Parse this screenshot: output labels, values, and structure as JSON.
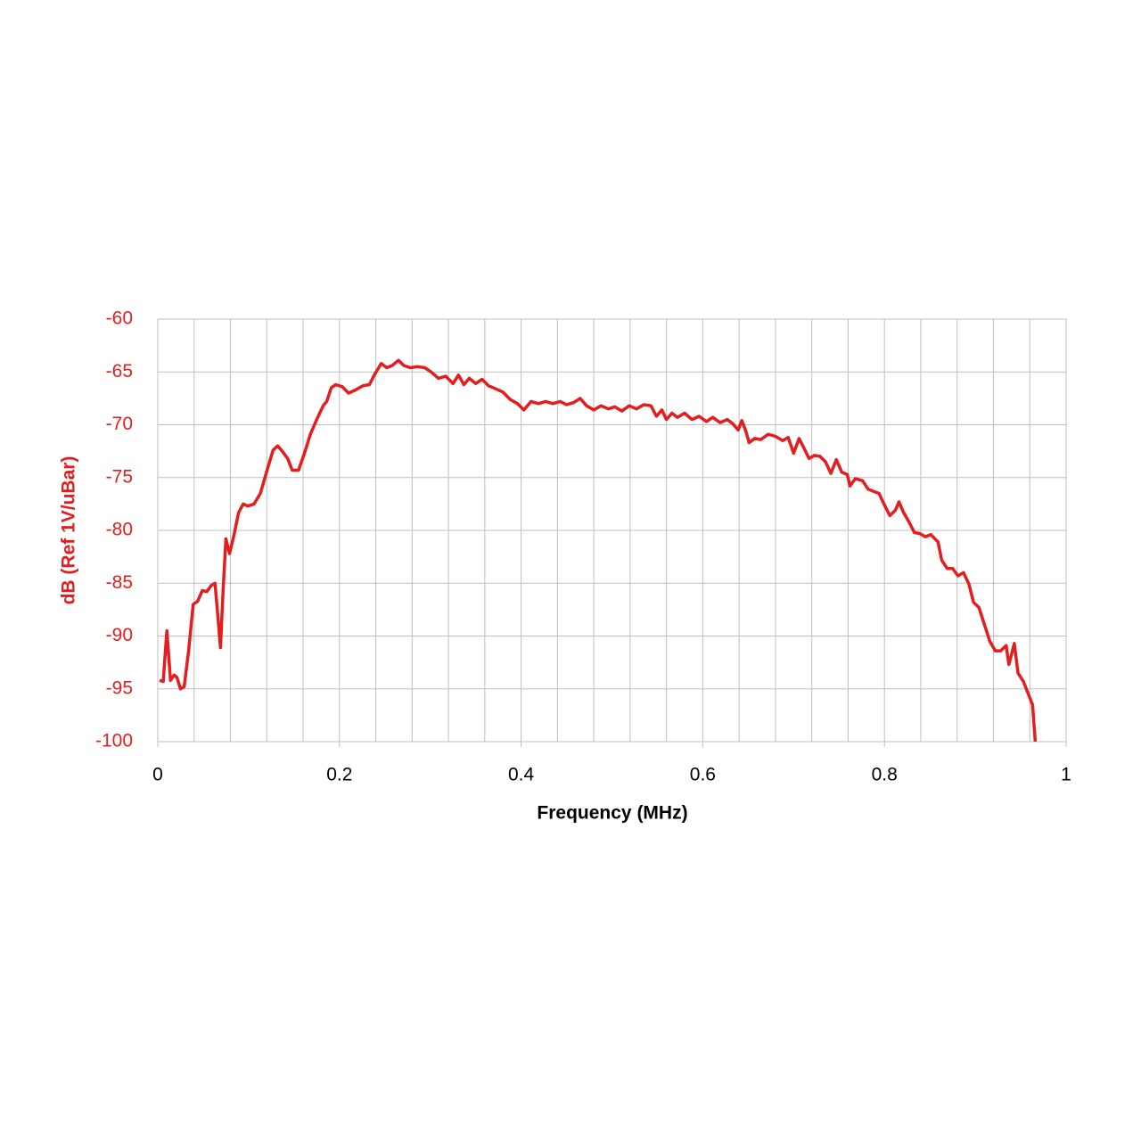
{
  "chart_data": {
    "type": "line",
    "xlabel": "Frequency (MHz)",
    "ylabel": "dB (Ref 1V/uBar)",
    "xlim": [
      0,
      1
    ],
    "ylim": [
      -100,
      -60
    ],
    "xticks": [
      0,
      0.2,
      0.4,
      0.6,
      0.8,
      1
    ],
    "yticks": [
      -100,
      -95,
      -90,
      -85,
      -80,
      -75,
      -70,
      -65,
      -60
    ],
    "xgrid": [
      0,
      0.04,
      0.08,
      0.12,
      0.16,
      0.2,
      0.24,
      0.28,
      0.32,
      0.36,
      0.4,
      0.44,
      0.48,
      0.52,
      0.56,
      0.6,
      0.64,
      0.68,
      0.72,
      0.76,
      0.8,
      0.84,
      0.88,
      0.92,
      0.96,
      1
    ],
    "grid": true,
    "series": [
      {
        "color": "#e41e1e",
        "x": [
          0.002,
          0.006,
          0.01,
          0.014,
          0.018,
          0.021,
          0.025,
          0.029,
          0.034,
          0.039,
          0.044,
          0.049,
          0.054,
          0.059,
          0.063,
          0.066,
          0.069,
          0.072,
          0.075,
          0.079,
          0.084,
          0.089,
          0.094,
          0.099,
          0.106,
          0.113,
          0.121,
          0.127,
          0.132,
          0.137,
          0.143,
          0.148,
          0.155,
          0.161,
          0.168,
          0.175,
          0.182,
          0.186,
          0.191,
          0.196,
          0.203,
          0.21,
          0.218,
          0.226,
          0.233,
          0.239,
          0.246,
          0.252,
          0.258,
          0.265,
          0.271,
          0.278,
          0.286,
          0.294,
          0.301,
          0.309,
          0.317,
          0.325,
          0.331,
          0.337,
          0.343,
          0.35,
          0.357,
          0.364,
          0.372,
          0.38,
          0.388,
          0.396,
          0.403,
          0.411,
          0.419,
          0.427,
          0.435,
          0.443,
          0.45,
          0.458,
          0.465,
          0.472,
          0.48,
          0.488,
          0.496,
          0.503,
          0.511,
          0.519,
          0.527,
          0.535,
          0.543,
          0.549,
          0.555,
          0.56,
          0.566,
          0.572,
          0.58,
          0.588,
          0.596,
          0.604,
          0.611,
          0.619,
          0.627,
          0.633,
          0.639,
          0.643,
          0.647,
          0.651,
          0.657,
          0.664,
          0.672,
          0.68,
          0.688,
          0.694,
          0.7,
          0.706,
          0.712,
          0.717,
          0.723,
          0.729,
          0.735,
          0.741,
          0.747,
          0.753,
          0.759,
          0.762,
          0.768,
          0.776,
          0.782,
          0.788,
          0.794,
          0.8,
          0.806,
          0.812,
          0.816,
          0.821,
          0.827,
          0.833,
          0.839,
          0.845,
          0.851,
          0.859,
          0.863,
          0.869,
          0.875,
          0.881,
          0.887,
          0.893,
          0.898,
          0.904,
          0.91,
          0.916,
          0.922,
          0.928,
          0.934,
          0.937,
          0.943,
          0.947,
          0.953,
          0.958,
          0.963,
          0.966
        ],
        "values": [
          -94.2,
          -94.3,
          -89.5,
          -94.2,
          -93.7,
          -93.9,
          -95.0,
          -94.8,
          -91.4,
          -87.0,
          -86.7,
          -85.7,
          -85.8,
          -85.2,
          -85.0,
          -88.0,
          -91.1,
          -85.5,
          -80.8,
          -82.2,
          -80.4,
          -78.3,
          -77.5,
          -77.7,
          -77.5,
          -76.5,
          -74.1,
          -72.4,
          -72.0,
          -72.5,
          -73.2,
          -74.3,
          -74.3,
          -72.8,
          -70.9,
          -69.5,
          -68.2,
          -67.8,
          -66.5,
          -66.2,
          -66.4,
          -67.0,
          -66.7,
          -66.3,
          -66.2,
          -65.2,
          -64.2,
          -64.6,
          -64.4,
          -63.9,
          -64.4,
          -64.6,
          -64.5,
          -64.6,
          -65.0,
          -65.6,
          -65.4,
          -66.1,
          -65.3,
          -66.2,
          -65.6,
          -66.1,
          -65.7,
          -66.3,
          -66.6,
          -66.9,
          -67.6,
          -68.0,
          -68.6,
          -67.8,
          -68.0,
          -67.8,
          -68.0,
          -67.8,
          -68.1,
          -67.9,
          -67.5,
          -68.2,
          -68.6,
          -68.2,
          -68.5,
          -68.3,
          -68.7,
          -68.2,
          -68.5,
          -68.1,
          -68.2,
          -69.2,
          -68.6,
          -69.5,
          -68.9,
          -69.3,
          -68.9,
          -69.5,
          -69.2,
          -69.7,
          -69.3,
          -69.8,
          -69.5,
          -69.9,
          -70.5,
          -69.6,
          -70.5,
          -71.7,
          -71.3,
          -71.4,
          -70.9,
          -71.1,
          -71.5,
          -71.2,
          -72.7,
          -71.3,
          -72.3,
          -73.2,
          -72.9,
          -73.0,
          -73.5,
          -74.6,
          -73.3,
          -74.5,
          -74.7,
          -75.8,
          -75.1,
          -75.3,
          -76.1,
          -76.3,
          -76.5,
          -77.6,
          -78.6,
          -78.1,
          -77.3,
          -78.3,
          -79.2,
          -80.2,
          -80.3,
          -80.6,
          -80.4,
          -81.1,
          -82.8,
          -83.6,
          -83.6,
          -84.3,
          -84.0,
          -85.1,
          -86.8,
          -87.3,
          -88.9,
          -90.5,
          -91.4,
          -91.4,
          -90.9,
          -92.7,
          -90.7,
          -93.5,
          -94.3,
          -95.4,
          -96.5,
          -100
        ]
      }
    ]
  }
}
